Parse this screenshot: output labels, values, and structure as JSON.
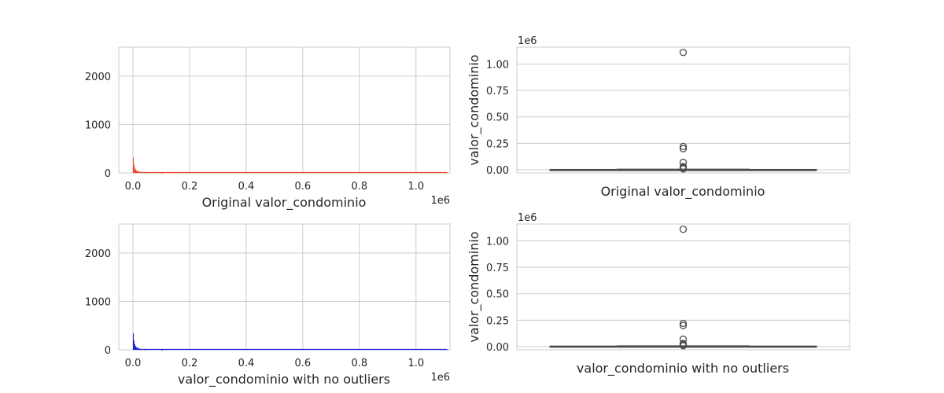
{
  "chart_data": [
    {
      "type": "histogram",
      "xlabel": "Original valor_condominio",
      "ylabel": "",
      "x_offset_label": "1e6",
      "xlim": [
        -0.05,
        1.12
      ],
      "ylim": [
        0,
        2600
      ],
      "x_ticks": [
        0.0,
        0.2,
        0.4,
        0.6,
        0.8,
        1.0
      ],
      "x_tick_labels": [
        "0.0",
        "0.2",
        "0.4",
        "0.6",
        "0.8",
        "1.0"
      ],
      "y_ticks": [
        0,
        1000,
        2000
      ],
      "y_tick_labels": [
        "0",
        "1000",
        "2000"
      ],
      "color": "#e8472b",
      "bins": [
        {
          "x": 0.0,
          "count": 320
        },
        {
          "x": 0.002,
          "count": 180
        },
        {
          "x": 0.005,
          "count": 110
        },
        {
          "x": 0.008,
          "count": 70
        },
        {
          "x": 0.012,
          "count": 45
        },
        {
          "x": 0.018,
          "count": 25
        },
        {
          "x": 0.025,
          "count": 12
        },
        {
          "x": 0.04,
          "count": 6
        },
        {
          "x": 0.1,
          "count": 2
        },
        {
          "x": 1.11,
          "count": 1
        }
      ],
      "grid": true
    },
    {
      "type": "box",
      "xlabel": "Original valor_condominio",
      "ylabel": "valor_condominio",
      "y_offset_label": "1e6",
      "ylim": [
        -0.03,
        1.16
      ],
      "y_ticks": [
        0.0,
        0.25,
        0.5,
        0.75,
        1.0
      ],
      "y_tick_labels": [
        "0.00",
        "0.25",
        "0.50",
        "0.75",
        "1.00"
      ],
      "median": 0.001,
      "q1": 0.0,
      "q3": 0.002,
      "whisker_low": 0.0,
      "whisker_high": 0.004,
      "outliers": [
        1.11,
        0.22,
        0.2,
        0.07,
        0.03,
        0.02,
        0.012,
        0.008
      ],
      "grid": true
    },
    {
      "type": "histogram",
      "xlabel": "valor_condominio with no outliers",
      "ylabel": "",
      "x_offset_label": "1e6",
      "xlim": [
        -0.05,
        1.12
      ],
      "ylim": [
        0,
        2600
      ],
      "x_ticks": [
        0.0,
        0.2,
        0.4,
        0.6,
        0.8,
        1.0
      ],
      "x_tick_labels": [
        "0.0",
        "0.2",
        "0.4",
        "0.6",
        "0.8",
        "1.0"
      ],
      "y_ticks": [
        0,
        1000,
        2000
      ],
      "y_tick_labels": [
        "0",
        "1000",
        "2000"
      ],
      "color": "#1414d8",
      "bins": [
        {
          "x": 0.0,
          "count": 340
        },
        {
          "x": 0.002,
          "count": 190
        },
        {
          "x": 0.005,
          "count": 115
        },
        {
          "x": 0.008,
          "count": 72
        },
        {
          "x": 0.012,
          "count": 46
        },
        {
          "x": 0.018,
          "count": 26
        },
        {
          "x": 0.025,
          "count": 12
        },
        {
          "x": 0.04,
          "count": 6
        },
        {
          "x": 0.1,
          "count": 2
        },
        {
          "x": 1.11,
          "count": 1
        }
      ],
      "grid": true
    },
    {
      "type": "box",
      "xlabel": "valor_condominio with no outliers",
      "ylabel": "valor_condominio",
      "y_offset_label": "1e6",
      "ylim": [
        -0.03,
        1.16
      ],
      "y_ticks": [
        0.0,
        0.25,
        0.5,
        0.75,
        1.0
      ],
      "y_tick_labels": [
        "0.00",
        "0.25",
        "0.50",
        "0.75",
        "1.00"
      ],
      "median": 0.001,
      "q1": 0.0,
      "q3": 0.004,
      "whisker_low": 0.0,
      "whisker_high": 0.006,
      "outliers": [
        1.11,
        0.22,
        0.2,
        0.07,
        0.03,
        0.02,
        0.012,
        0.008
      ],
      "grid": true
    }
  ],
  "colors": {
    "box_line": "#4d4d4d",
    "grid": "#cccccc",
    "frame": "#cccccc"
  }
}
